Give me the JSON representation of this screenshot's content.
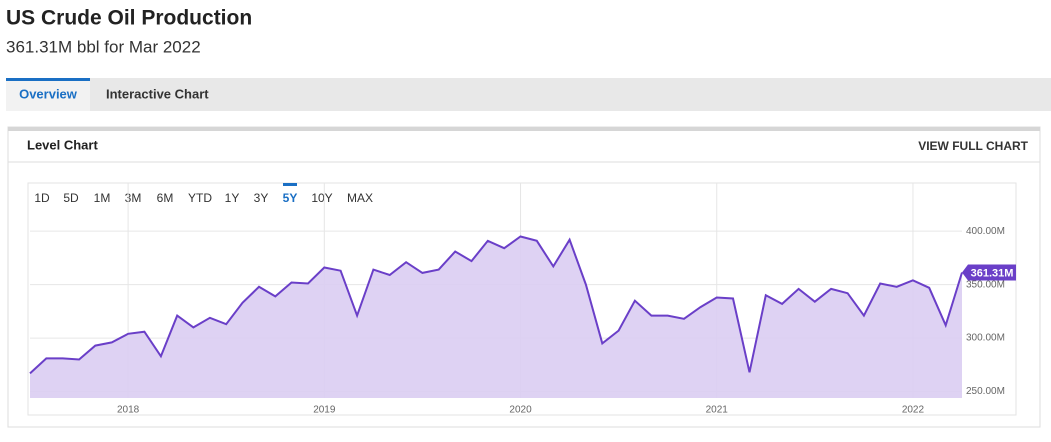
{
  "header": {
    "title": "US Crude Oil Production",
    "subtitle": "361.31M bbl for Mar 2022"
  },
  "tabs": [
    "Overview",
    "Interactive Chart"
  ],
  "active_tab": "Overview",
  "panel": {
    "title": "Level Chart",
    "action": "VIEW FULL CHART"
  },
  "ranges": [
    "1D",
    "5D",
    "1M",
    "3M",
    "6M",
    "YTD",
    "1Y",
    "3Y",
    "5Y",
    "10Y",
    "MAX"
  ],
  "active_range": "5Y",
  "chart_data": {
    "type": "area",
    "x": [
      2017.5,
      2017.583,
      2017.667,
      2017.75,
      2017.833,
      2017.917,
      2018.0,
      2018.083,
      2018.167,
      2018.25,
      2018.333,
      2018.417,
      2018.5,
      2018.583,
      2018.667,
      2018.75,
      2018.833,
      2018.917,
      2019.0,
      2019.083,
      2019.167,
      2019.25,
      2019.333,
      2019.417,
      2019.5,
      2019.583,
      2019.667,
      2019.75,
      2019.833,
      2019.917,
      2020.0,
      2020.083,
      2020.167,
      2020.25,
      2020.333,
      2020.417,
      2020.5,
      2020.583,
      2020.667,
      2020.75,
      2020.833,
      2020.917,
      2021.0,
      2021.083,
      2021.167,
      2021.25,
      2021.333,
      2021.417,
      2021.5,
      2021.583,
      2021.667,
      2021.75,
      2021.833,
      2021.917,
      2022.0,
      2022.083,
      2022.167,
      2022.25
    ],
    "series": [
      {
        "name": "US Crude Oil Production",
        "color": "#6a3fc8",
        "fill": "#dacdf2",
        "values": [
          267,
          281,
          281,
          280,
          293,
          296,
          304,
          306,
          283,
          321,
          310,
          319,
          313,
          333,
          348,
          339,
          352,
          351,
          366,
          363,
          321,
          364,
          359,
          371,
          361,
          364,
          381,
          372,
          391,
          384,
          395,
          391,
          367,
          392,
          350,
          295,
          307,
          335,
          321,
          321,
          318,
          329,
          338,
          337,
          268,
          340,
          332,
          346,
          334,
          346,
          342,
          321,
          351,
          348,
          354,
          347,
          312,
          361.31
        ],
        "value_labels": [
          null,
          null,
          null,
          null,
          null,
          null,
          null,
          null,
          null,
          null,
          null,
          null,
          null,
          null,
          null,
          null,
          null,
          null,
          null,
          null,
          null,
          null,
          null,
          null,
          null,
          null,
          null,
          null,
          null,
          null,
          null,
          null,
          null,
          null,
          null,
          null,
          null,
          null,
          null,
          null,
          null,
          null,
          null,
          null,
          null,
          null,
          null,
          null,
          null,
          null,
          null,
          null,
          null,
          null,
          null,
          null,
          null,
          "361.31M"
        ]
      }
    ],
    "xlim": [
      2017.5,
      2022.25
    ],
    "xticks": [
      2018,
      2019,
      2020,
      2021,
      2022
    ],
    "ylim": [
      244,
      445
    ],
    "yticks": [
      {
        "value": 250,
        "label": "250.00M"
      },
      {
        "value": 300,
        "label": "300.00M"
      },
      {
        "value": 350,
        "label": "350.00M"
      },
      {
        "value": 400,
        "label": "400.00M"
      }
    ],
    "grid": true
  }
}
